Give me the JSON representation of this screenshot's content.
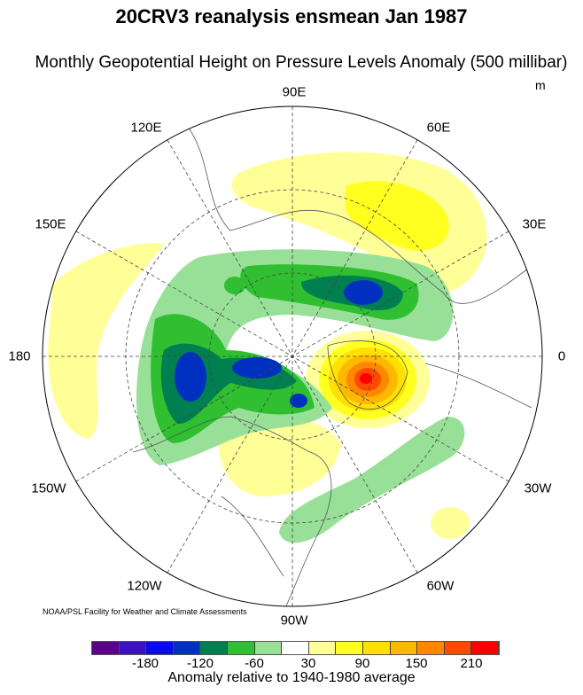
{
  "title": "20CRV3 reanalysis ensmean Jan 1987",
  "subtitle": "Monthly Geopotential Height on Pressure Levels Anomaly (500 millibar)",
  "units": "m",
  "longitude_labels": [
    "90E",
    "60E",
    "30E",
    "0",
    "30W",
    "60W",
    "90W",
    "120W",
    "150W",
    "180",
    "150E",
    "120E"
  ],
  "credit": "NOAA/PSL Facility for Weather and Climate Assessments",
  "colorbar": {
    "colors": [
      "#5c0087",
      "#3a12c0",
      "#0a0af0",
      "#0030c0",
      "#008050",
      "#2fbf30",
      "#98e098",
      "#ffffff",
      "#ffff98",
      "#ffff20",
      "#ffe000",
      "#ffb800",
      "#ff8800",
      "#ff4800",
      "#ff0000"
    ],
    "labels": [
      "-180",
      "-120",
      "-60",
      "30",
      "90",
      "150",
      "210"
    ],
    "title": "Anomaly relative to 1940-1980 average"
  }
}
